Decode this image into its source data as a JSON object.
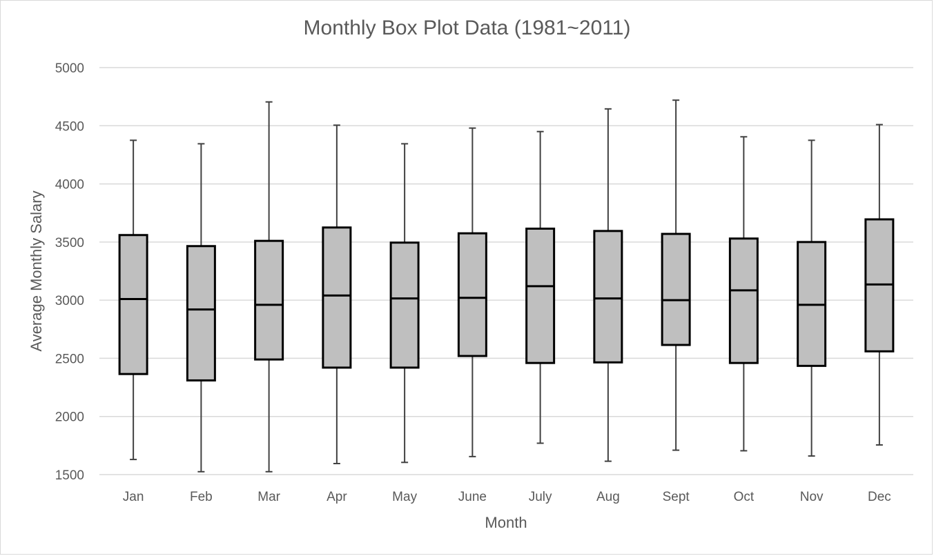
{
  "chart_data": {
    "type": "box",
    "title": "Monthly Box Plot Data (1981~2011)",
    "xlabel": "Month",
    "ylabel": "Average Monthly Salary",
    "ylim": [
      1500,
      5000
    ],
    "yticks": [
      1500,
      2000,
      2500,
      3000,
      3500,
      4000,
      4500,
      5000
    ],
    "grid": true,
    "categories": [
      "Jan",
      "Feb",
      "Mar",
      "Apr",
      "May",
      "June",
      "July",
      "Aug",
      "Sept",
      "Oct",
      "Nov",
      "Dec"
    ],
    "series": [
      {
        "min": [
          1630,
          1525,
          1525,
          1595,
          1605,
          1655,
          1770,
          1615,
          1710,
          1705,
          1660,
          1755
        ],
        "q1": [
          2365,
          2310,
          2490,
          2420,
          2420,
          2520,
          2460,
          2465,
          2615,
          2460,
          2435,
          2560
        ],
        "median": [
          3010,
          2920,
          2960,
          3040,
          3015,
          3020,
          3120,
          3015,
          3000,
          3085,
          2960,
          3135
        ],
        "q3": [
          3560,
          3465,
          3510,
          3625,
          3495,
          3575,
          3615,
          3595,
          3570,
          3530,
          3500,
          3695
        ],
        "max": [
          4375,
          4345,
          4705,
          4505,
          4345,
          4480,
          4450,
          4645,
          4720,
          4405,
          4375,
          4510
        ]
      }
    ],
    "box_fill": "#bfbfbf",
    "box_stroke": "#000000",
    "whisker_color": "#404040",
    "grid_color": "#d9d9d9"
  }
}
